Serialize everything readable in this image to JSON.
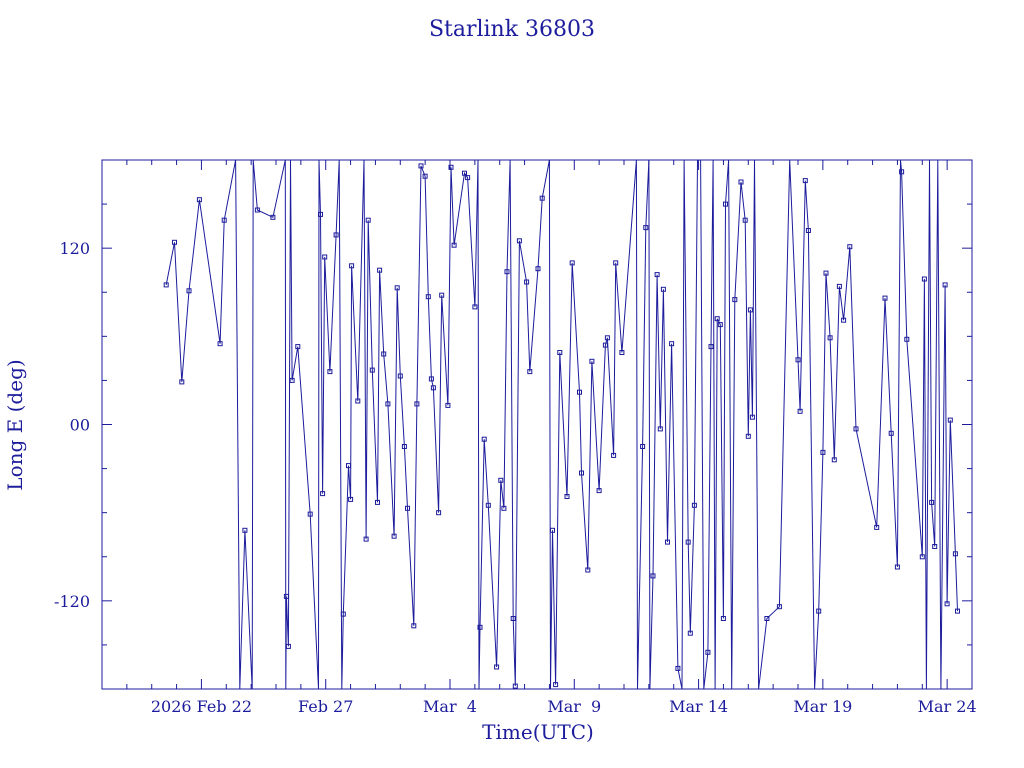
{
  "colors": {
    "ink": "#1c1c9c",
    "background": "#ffffff"
  },
  "chart_data": {
    "type": "line",
    "title": "Starlink 36803",
    "xlabel": "Time(UTC)",
    "ylabel": "Long E (deg)",
    "xlim": [
      "2026-02-18T00:00",
      "2026-03-25T00:00"
    ],
    "ylim": [
      -180,
      180
    ],
    "x_ticks": [
      {
        "date": "2026-02-22",
        "label": "2026 Feb 22"
      },
      {
        "date": "2026-02-27",
        "label": "Feb 27"
      },
      {
        "date": "2026-03-04",
        "label": "Mar  4"
      },
      {
        "date": "2026-03-09",
        "label": "Mar  9"
      },
      {
        "date": "2026-03-14",
        "label": "Mar 14"
      },
      {
        "date": "2026-03-19",
        "label": "Mar 19"
      },
      {
        "date": "2026-03-24",
        "label": "Mar 24"
      }
    ],
    "y_ticks": [
      {
        "value": 120,
        "label": "120"
      },
      {
        "value": 0,
        "label": "00"
      },
      {
        "value": -120,
        "label": "-120"
      }
    ],
    "grid": false,
    "marker": "square",
    "series": [
      {
        "points": [
          [
            "2026-02-20T14:00",
            95
          ],
          [
            "2026-02-20T22:00",
            124
          ],
          [
            "2026-02-21T05:00",
            29
          ],
          [
            "2026-02-21T12:00",
            91
          ],
          [
            "2026-02-21T22:00",
            153
          ],
          [
            "2026-02-22T18:00",
            55
          ],
          [
            "2026-02-22T22:00",
            139
          ],
          [
            "2026-02-23T09:00",
            180
          ],
          [
            "2026-02-23T13:00",
            -180
          ],
          [
            "2026-02-23T18:00",
            -72
          ],
          [
            "2026-02-24T01:00",
            -180
          ],
          [
            "2026-02-24T02:00",
            180
          ],
          [
            "2026-02-24T06:00",
            146
          ],
          [
            "2026-02-24T21:00",
            141
          ],
          [
            "2026-02-25T09:00",
            180
          ],
          [
            "2026-02-25T09:30",
            -180
          ],
          [
            "2026-02-25T10:00",
            -117
          ],
          [
            "2026-02-25T12:00",
            -151
          ],
          [
            "2026-02-25T14:00",
            180
          ],
          [
            "2026-02-25T15:30",
            30
          ],
          [
            "2026-02-25T21:00",
            53
          ],
          [
            "2026-02-26T09:00",
            -61
          ],
          [
            "2026-02-26T17:00",
            -180
          ],
          [
            "2026-02-26T17:30",
            180
          ],
          [
            "2026-02-26T19:00",
            143
          ],
          [
            "2026-02-26T21:00",
            -47
          ],
          [
            "2026-02-26T23:00",
            114
          ],
          [
            "2026-02-27T04:00",
            36
          ],
          [
            "2026-02-27T10:00",
            129
          ],
          [
            "2026-02-27T13:00",
            180
          ],
          [
            "2026-02-27T15:30",
            -180
          ],
          [
            "2026-02-27T17:00",
            -129
          ],
          [
            "2026-02-27T22:00",
            -28
          ],
          [
            "2026-02-28T00:00",
            -51
          ],
          [
            "2026-02-28T01:00",
            108
          ],
          [
            "2026-02-28T07:00",
            16
          ],
          [
            "2026-02-28T13:00",
            180
          ],
          [
            "2026-02-28T15:00",
            -78
          ],
          [
            "2026-02-28T17:00",
            139
          ],
          [
            "2026-02-28T21:00",
            37
          ],
          [
            "2026-03-01T02:00",
            -53
          ],
          [
            "2026-03-01T04:00",
            105
          ],
          [
            "2026-03-01T08:00",
            48
          ],
          [
            "2026-03-01T12:00",
            14
          ],
          [
            "2026-03-01T18:00",
            -76
          ],
          [
            "2026-03-01T21:00",
            93
          ],
          [
            "2026-03-02T00:00",
            33
          ],
          [
            "2026-03-02T04:00",
            -15
          ],
          [
            "2026-03-02T07:00",
            -57
          ],
          [
            "2026-03-02T13:00",
            -137
          ],
          [
            "2026-03-02T16:00",
            14
          ],
          [
            "2026-03-02T20:00",
            176
          ],
          [
            "2026-03-03T00:00",
            169
          ],
          [
            "2026-03-03T03:00",
            87
          ],
          [
            "2026-03-03T06:00",
            31
          ],
          [
            "2026-03-03T08:00",
            25
          ],
          [
            "2026-03-03T13:00",
            -60
          ],
          [
            "2026-03-03T16:00",
            88
          ],
          [
            "2026-03-03T22:00",
            13
          ],
          [
            "2026-03-04T01:00",
            175
          ],
          [
            "2026-03-04T04:00",
            122
          ],
          [
            "2026-03-04T14:00",
            171
          ],
          [
            "2026-03-04T17:00",
            168
          ],
          [
            "2026-03-05T00:00",
            80
          ],
          [
            "2026-03-05T03:00",
            180
          ],
          [
            "2026-03-05T04:00",
            -180
          ],
          [
            "2026-03-05T05:00",
            -138
          ],
          [
            "2026-03-05T09:00",
            -10
          ],
          [
            "2026-03-05T13:00",
            -55
          ],
          [
            "2026-03-05T21:00",
            -165
          ],
          [
            "2026-03-06T01:00",
            -38
          ],
          [
            "2026-03-06T04:00",
            -57
          ],
          [
            "2026-03-06T07:00",
            104
          ],
          [
            "2026-03-06T10:00",
            180
          ],
          [
            "2026-03-06T13:00",
            -132
          ],
          [
            "2026-03-06T15:00",
            -178
          ],
          [
            "2026-03-06T19:00",
            125
          ],
          [
            "2026-03-07T02:00",
            97
          ],
          [
            "2026-03-07T05:00",
            36
          ],
          [
            "2026-03-07T13:00",
            106
          ],
          [
            "2026-03-07T17:00",
            154
          ],
          [
            "2026-03-08T00:00",
            180
          ],
          [
            "2026-03-08T01:00",
            -180
          ],
          [
            "2026-03-08T03:00",
            -72
          ],
          [
            "2026-03-08T06:00",
            -177
          ],
          [
            "2026-03-08T10:00",
            49
          ],
          [
            "2026-03-08T17:00",
            -49
          ],
          [
            "2026-03-08T22:00",
            110
          ],
          [
            "2026-03-09T05:00",
            22
          ],
          [
            "2026-03-09T07:00",
            -33
          ],
          [
            "2026-03-09T13:00",
            -99
          ],
          [
            "2026-03-09T17:00",
            43
          ],
          [
            "2026-03-10T00:00",
            -45
          ],
          [
            "2026-03-10T06:00",
            54
          ],
          [
            "2026-03-10T08:00",
            59
          ],
          [
            "2026-03-10T14:00",
            -21
          ],
          [
            "2026-03-10T16:00",
            110
          ],
          [
            "2026-03-10T22:00",
            49
          ],
          [
            "2026-03-11T12:00",
            180
          ],
          [
            "2026-03-11T13:00",
            -180
          ],
          [
            "2026-03-11T18:00",
            -15
          ],
          [
            "2026-03-11T21:00",
            134
          ],
          [
            "2026-03-12T00:00",
            180
          ],
          [
            "2026-03-12T01:00",
            -180
          ],
          [
            "2026-03-12T04:00",
            -103
          ],
          [
            "2026-03-12T08:00",
            102
          ],
          [
            "2026-03-12T11:00",
            -3
          ],
          [
            "2026-03-12T14:00",
            92
          ],
          [
            "2026-03-12T18:00",
            -80
          ],
          [
            "2026-03-12T22:00",
            55
          ],
          [
            "2026-03-13T04:00",
            -166
          ],
          [
            "2026-03-13T08:00",
            -180
          ],
          [
            "2026-03-13T10:00",
            180
          ],
          [
            "2026-03-13T14:00",
            -80
          ],
          [
            "2026-03-13T16:00",
            -142
          ],
          [
            "2026-03-13T20:00",
            -55
          ],
          [
            "2026-03-13T23:00",
            180
          ],
          [
            "2026-03-14T02:00",
            180
          ],
          [
            "2026-03-14T05:00",
            -180
          ],
          [
            "2026-03-14T09:00",
            -155
          ],
          [
            "2026-03-14T12:00",
            53
          ],
          [
            "2026-03-14T14:00",
            180
          ],
          [
            "2026-03-14T16:00",
            -180
          ],
          [
            "2026-03-14T18:00",
            72
          ],
          [
            "2026-03-14T21:00",
            68
          ],
          [
            "2026-03-15T00:00",
            -132
          ],
          [
            "2026-03-15T02:00",
            150
          ],
          [
            "2026-03-15T05:00",
            180
          ],
          [
            "2026-03-15T08:00",
            -180
          ],
          [
            "2026-03-15T11:00",
            85
          ],
          [
            "2026-03-15T17:00",
            165
          ],
          [
            "2026-03-15T21:00",
            139
          ],
          [
            "2026-03-16T00:00",
            -8
          ],
          [
            "2026-03-16T02:00",
            78
          ],
          [
            "2026-03-16T04:00",
            5
          ],
          [
            "2026-03-16T06:00",
            180
          ],
          [
            "2026-03-16T10:00",
            -180
          ],
          [
            "2026-03-16T18:00",
            -132
          ],
          [
            "2026-03-17T06:00",
            -124
          ],
          [
            "2026-03-17T16:00",
            180
          ],
          [
            "2026-03-18T00:00",
            44
          ],
          [
            "2026-03-18T02:00",
            9
          ],
          [
            "2026-03-18T07:00",
            166
          ],
          [
            "2026-03-18T10:00",
            132
          ],
          [
            "2026-03-18T16:00",
            -180
          ],
          [
            "2026-03-18T20:00",
            -127
          ],
          [
            "2026-03-19T00:00",
            -19
          ],
          [
            "2026-03-19T03:00",
            103
          ],
          [
            "2026-03-19T07:00",
            59
          ],
          [
            "2026-03-19T11:00",
            -24
          ],
          [
            "2026-03-19T16:00",
            94
          ],
          [
            "2026-03-19T20:00",
            71
          ],
          [
            "2026-03-20T02:00",
            121
          ],
          [
            "2026-03-20T08:00",
            -3
          ],
          [
            "2026-03-21T04:00",
            -70
          ],
          [
            "2026-03-21T12:00",
            86
          ],
          [
            "2026-03-21T18:00",
            -6
          ],
          [
            "2026-03-22T00:00",
            -97
          ],
          [
            "2026-03-22T03:00",
            180
          ],
          [
            "2026-03-22T04:00",
            172
          ],
          [
            "2026-03-22T09:00",
            58
          ],
          [
            "2026-03-23T00:00",
            -90
          ],
          [
            "2026-03-23T02:00",
            99
          ],
          [
            "2026-03-23T04:00",
            -180
          ],
          [
            "2026-03-23T07:00",
            180
          ],
          [
            "2026-03-23T09:00",
            -53
          ],
          [
            "2026-03-23T12:00",
            -83
          ],
          [
            "2026-03-23T15:00",
            180
          ],
          [
            "2026-03-23T18:00",
            -180
          ],
          [
            "2026-03-23T22:00",
            95
          ],
          [
            "2026-03-24T00:00",
            -122
          ],
          [
            "2026-03-24T03:00",
            3
          ],
          [
            "2026-03-24T08:00",
            -88
          ],
          [
            "2026-03-24T10:00",
            -127
          ]
        ]
      }
    ]
  }
}
